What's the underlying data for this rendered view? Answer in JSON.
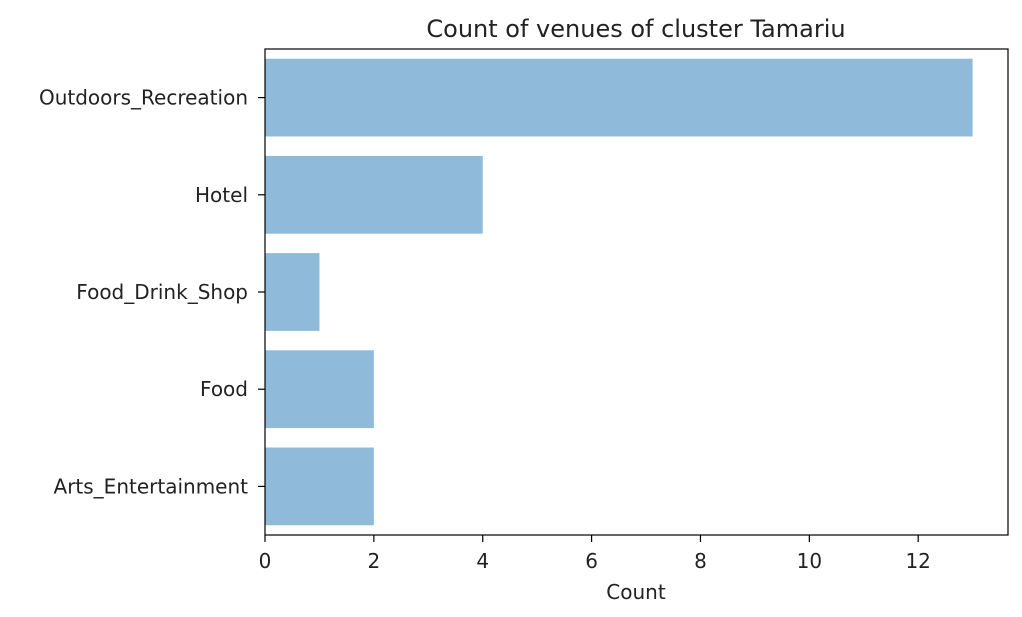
{
  "chart_data": {
    "type": "bar",
    "orientation": "horizontal",
    "title": "Count of venues of cluster Tamariu",
    "xlabel": "Count",
    "ylabel": "",
    "categories": [
      "Outdoors_Recreation",
      "Hotel",
      "Food_Drink_Shop",
      "Food",
      "Arts_Entertainment"
    ],
    "values": [
      13,
      4,
      1,
      2,
      2
    ],
    "xlim": [
      0,
      13.65
    ],
    "xticks": [
      0,
      2,
      4,
      6,
      8,
      10,
      12
    ],
    "grid": false,
    "bar_color": "#8fbad9"
  }
}
